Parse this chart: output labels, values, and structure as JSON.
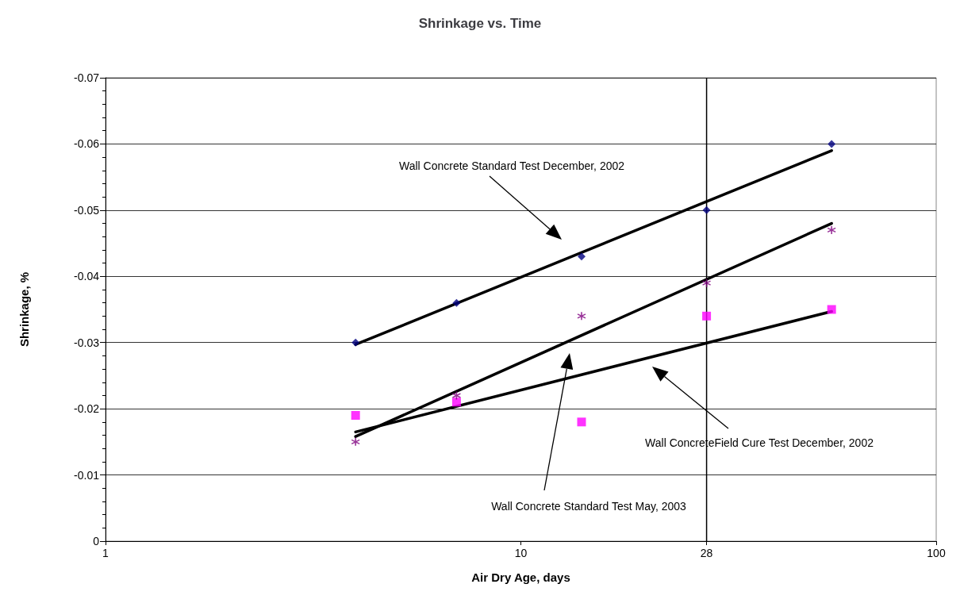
{
  "chart_data": {
    "type": "scatter",
    "title": "Shrinkage vs. Time",
    "xlabel": "Air Dry Age, days",
    "ylabel": "Shrinkage, %",
    "log": "x",
    "xlim": [
      1,
      100
    ],
    "xticks": [
      1,
      10,
      28,
      100
    ],
    "ylim": [
      0,
      -0.07
    ],
    "yticks": [
      0,
      -0.01,
      -0.02,
      -0.03,
      -0.04,
      -0.05,
      -0.06,
      -0.07
    ],
    "grid": "y",
    "ref_lines": [
      {
        "axis": "x",
        "value": 28,
        "color": "#000000"
      }
    ],
    "series": [
      {
        "color": "#000080",
        "marker": "diamond",
        "x": [
          4,
          7,
          14,
          28,
          56
        ],
        "values": [
          -0.03,
          -0.036,
          -0.043,
          -0.05,
          -0.06
        ]
      },
      {
        "color": "#ff00ff",
        "marker": "square",
        "x": [
          4,
          7,
          14,
          28,
          56
        ],
        "values": [
          -0.019,
          -0.021,
          -0.018,
          -0.034,
          -0.035
        ]
      },
      {
        "color": "#800080",
        "marker": "cross",
        "x": [
          4,
          7,
          14,
          28,
          56
        ],
        "values": [
          -0.015,
          -0.022,
          -0.034,
          -0.039,
          -0.047
        ]
      },
      {
        "type": "line",
        "color": "#000000",
        "marker": "none",
        "x": [
          4,
          56
        ],
        "values": [
          -0.0297,
          -0.059
        ]
      },
      {
        "type": "line",
        "color": "#000000",
        "marker": "none",
        "x": [
          4,
          56
        ],
        "values": [
          -0.0158,
          -0.048
        ]
      },
      {
        "type": "line",
        "color": "#000000",
        "marker": "none",
        "x": [
          4,
          56
        ],
        "values": [
          -0.0165,
          -0.0347
        ]
      }
    ],
    "annotations": [
      "Wall Concrete Standard Test December, 2002",
      "Wall ConcreteField Cure Test December, 2002",
      "Wall Concrete Standard Test May, 2003"
    ]
  }
}
